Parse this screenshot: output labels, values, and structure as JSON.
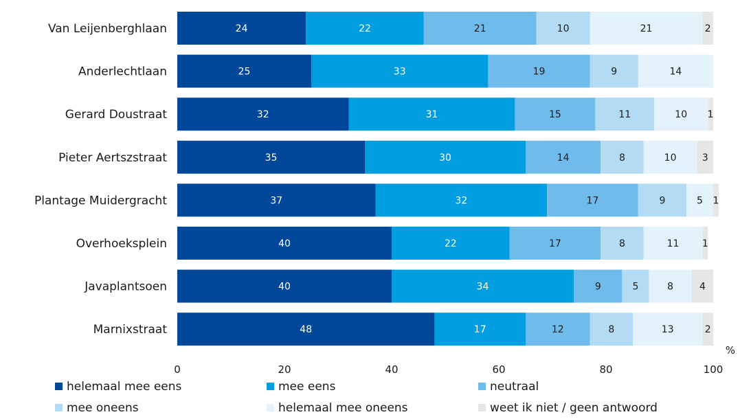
{
  "chart_data": {
    "type": "bar",
    "orientation": "horizontal",
    "stacked": true,
    "unit": "%",
    "xlim": [
      0,
      100
    ],
    "x_ticks": [
      0,
      20,
      40,
      60,
      80,
      100
    ],
    "grid": false,
    "legend_position": "bottom",
    "categories": [
      "Van Leijenberghlaan",
      "Anderlechtlaan",
      "Gerard Doustraat",
      "Pieter Aertszstraat",
      "Plantage Muidergracht",
      "Overhoeksplein",
      "Javaplantsoen",
      "Marnixstraat"
    ],
    "series": [
      {
        "name": "helemaal mee eens",
        "color": "#00479a",
        "label_color": "#ffffff",
        "values": [
          24,
          25,
          32,
          35,
          37,
          40,
          40,
          48
        ]
      },
      {
        "name": "mee eens",
        "color": "#009de0",
        "label_color": "#ffffff",
        "values": [
          22,
          33,
          31,
          30,
          32,
          22,
          34,
          17
        ]
      },
      {
        "name": "neutraal",
        "color": "#6fbcec",
        "label_color": "#1a1a1a",
        "values": [
          21,
          19,
          15,
          14,
          17,
          17,
          9,
          12
        ]
      },
      {
        "name": "mee oneens",
        "color": "#b3dcf4",
        "label_color": "#1a1a1a",
        "values": [
          10,
          9,
          11,
          8,
          9,
          8,
          5,
          8
        ]
      },
      {
        "name": "helemaal mee oneens",
        "color": "#e4f2fc",
        "label_color": "#1a1a1a",
        "values": [
          21,
          14,
          10,
          10,
          5,
          11,
          8,
          13
        ]
      },
      {
        "name": "weet ik niet / geen antwoord",
        "color": "#e6e6e6",
        "label_color": "#1a1a1a",
        "values": [
          2,
          0,
          1,
          3,
          1,
          1,
          4,
          2
        ]
      }
    ]
  }
}
